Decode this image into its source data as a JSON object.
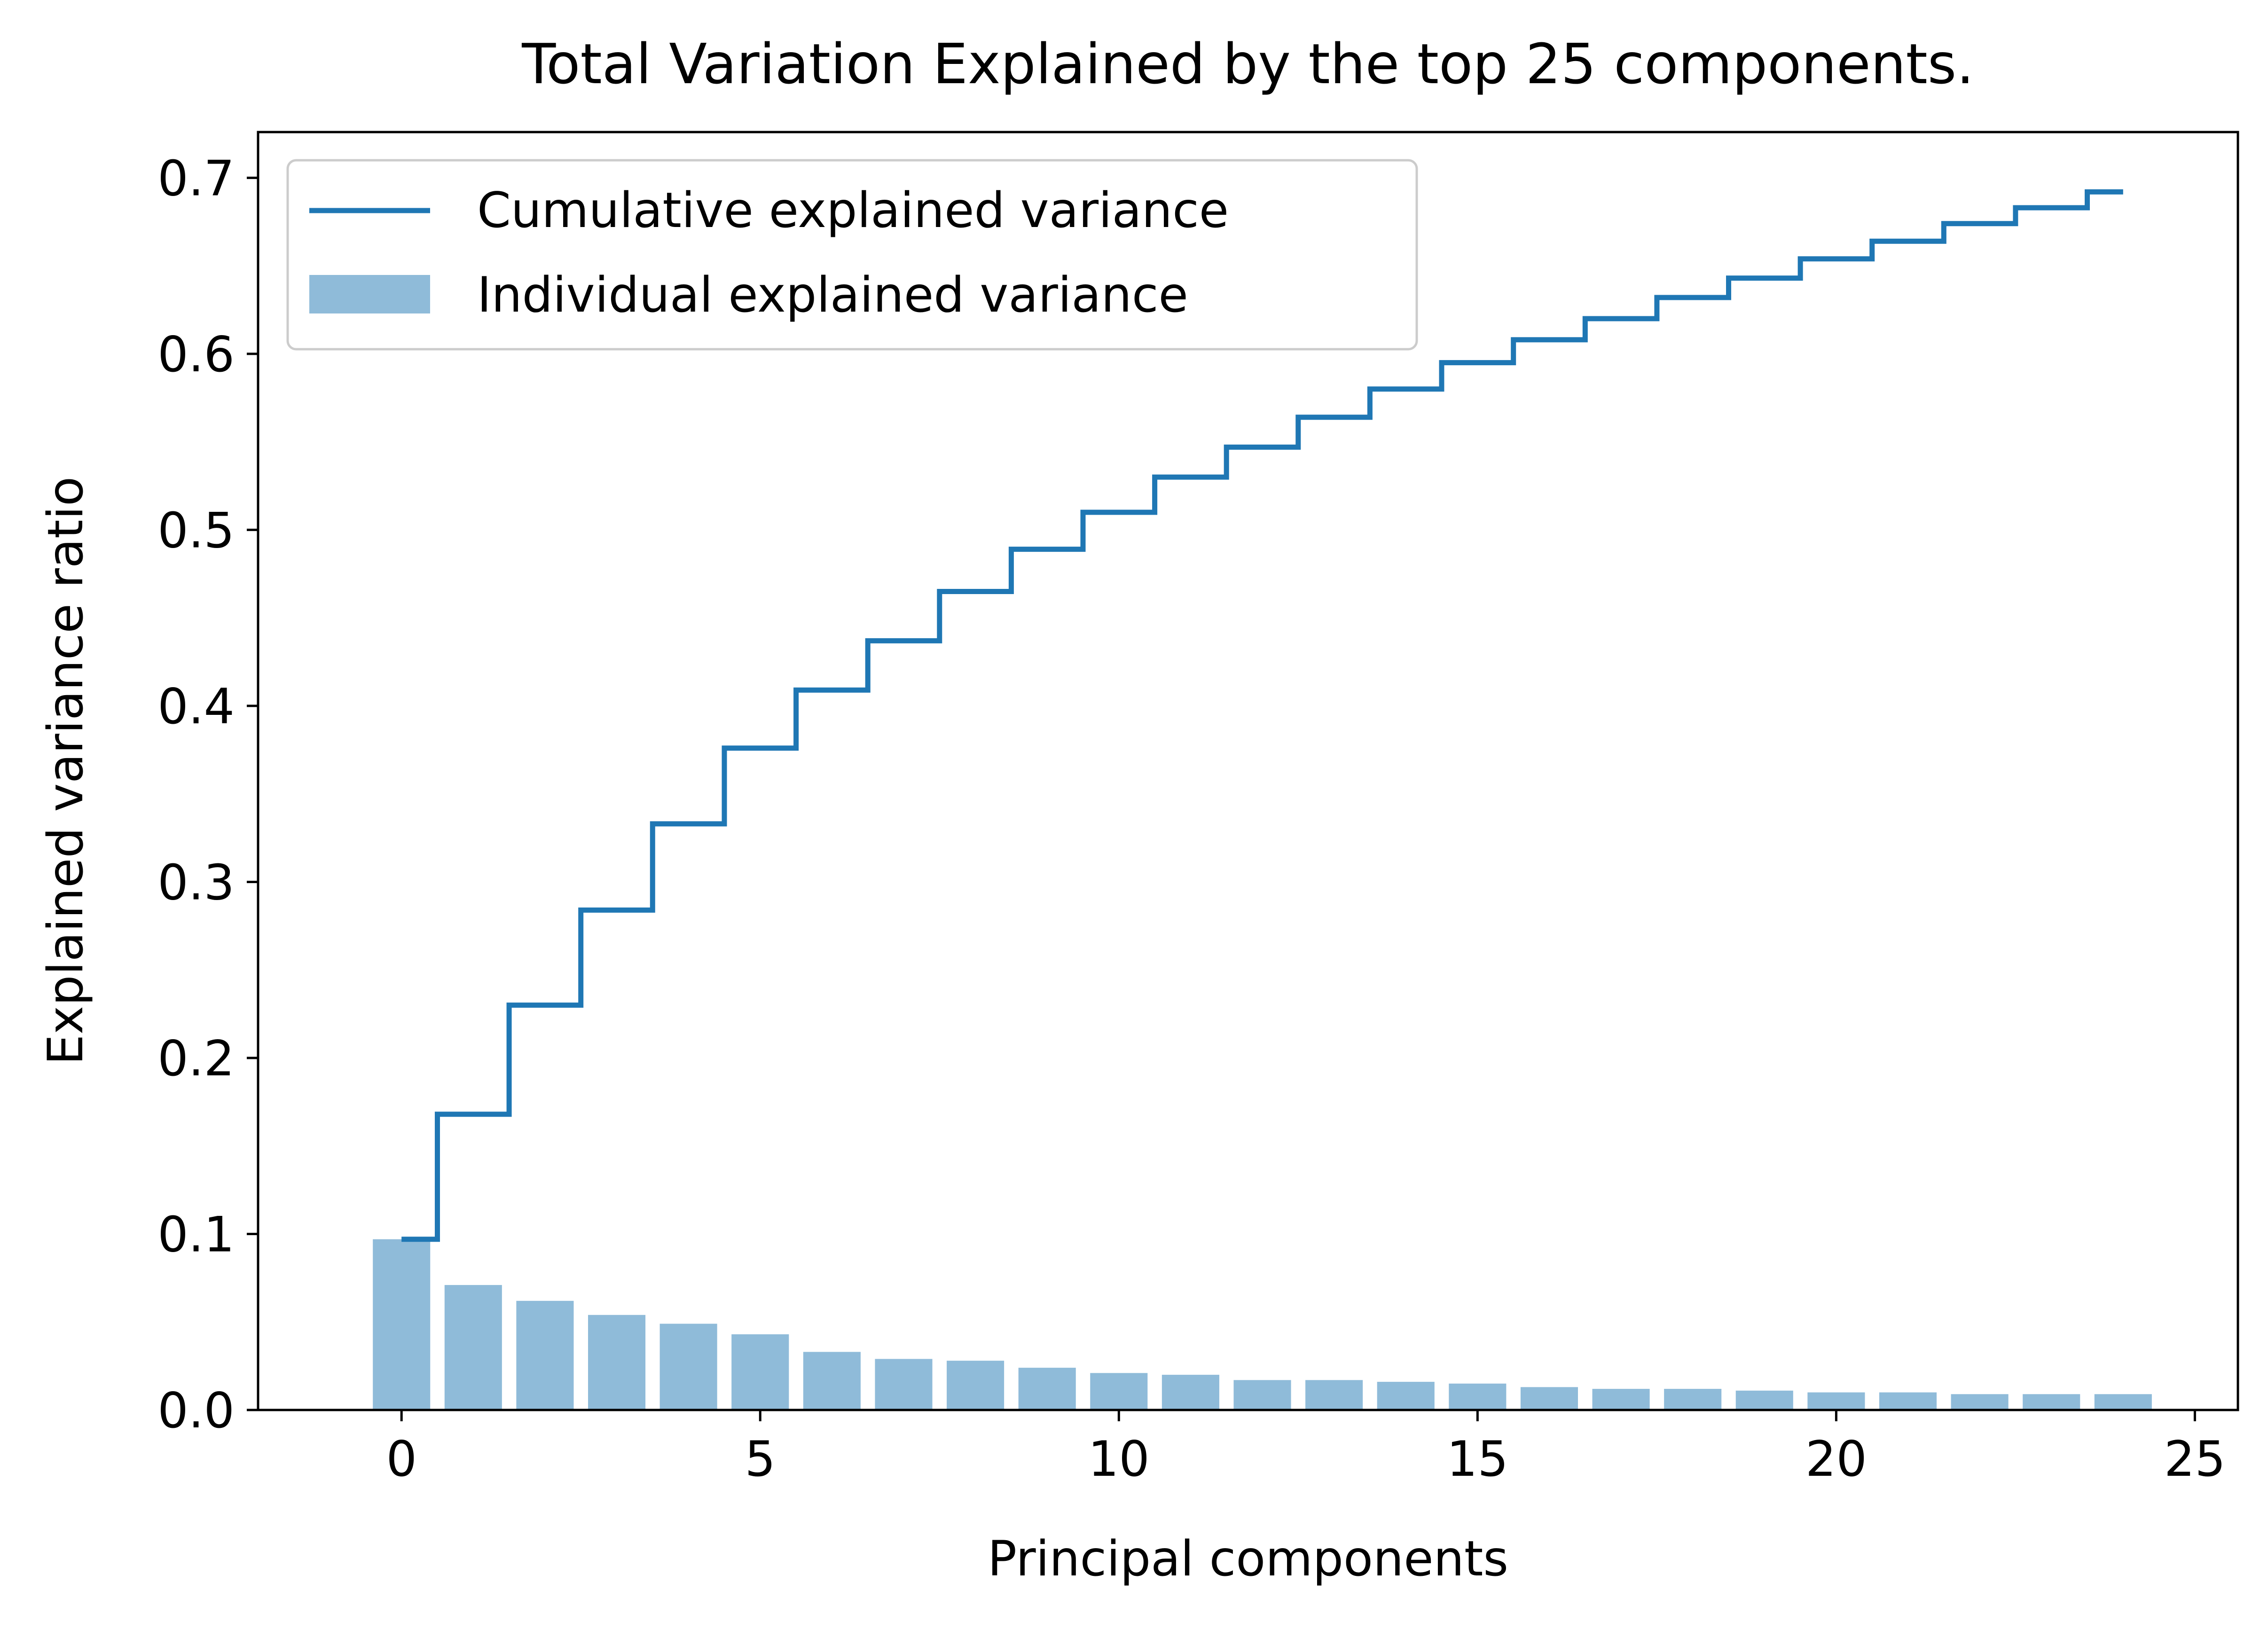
{
  "chart_data": {
    "type": "bar",
    "title": "Total Variation Explained by the top 25 components.",
    "xlabel": "Principal components",
    "ylabel": "Explained variance ratio",
    "xlim": [
      -2,
      25.6
    ],
    "ylim": [
      0,
      0.726
    ],
    "xticks": [
      0,
      5,
      10,
      15,
      20,
      25
    ],
    "xtick_labels": [
      "0",
      "5",
      "10",
      "15",
      "20",
      "25"
    ],
    "yticks": [
      0.0,
      0.1,
      0.2,
      0.3,
      0.4,
      0.5,
      0.6,
      0.7
    ],
    "ytick_labels": [
      "0.0",
      "0.1",
      "0.2",
      "0.3",
      "0.4",
      "0.5",
      "0.6",
      "0.7"
    ],
    "grid": false,
    "legend_position": "top-left",
    "x": [
      0,
      1,
      2,
      3,
      4,
      5,
      6,
      7,
      8,
      9,
      10,
      11,
      12,
      13,
      14,
      15,
      16,
      17,
      18,
      19,
      20,
      21,
      22,
      23,
      24
    ],
    "series": [
      {
        "name": "Cumulative explained variance",
        "kind": "step",
        "color": "#1f77b4",
        "values": [
          0.097,
          0.168,
          0.23,
          0.284,
          0.333,
          0.376,
          0.409,
          0.437,
          0.465,
          0.489,
          0.51,
          0.53,
          0.547,
          0.564,
          0.58,
          0.595,
          0.608,
          0.62,
          0.632,
          0.643,
          0.654,
          0.664,
          0.674,
          0.683,
          0.692
        ]
      },
      {
        "name": "Individual explained variance",
        "kind": "bar",
        "color": "#1f77b4",
        "opacity": 0.5,
        "values": [
          0.097,
          0.071,
          0.062,
          0.054,
          0.049,
          0.043,
          0.033,
          0.029,
          0.028,
          0.024,
          0.021,
          0.02,
          0.017,
          0.017,
          0.016,
          0.015,
          0.013,
          0.012,
          0.012,
          0.011,
          0.01,
          0.01,
          0.009,
          0.009,
          0.009
        ]
      }
    ]
  }
}
